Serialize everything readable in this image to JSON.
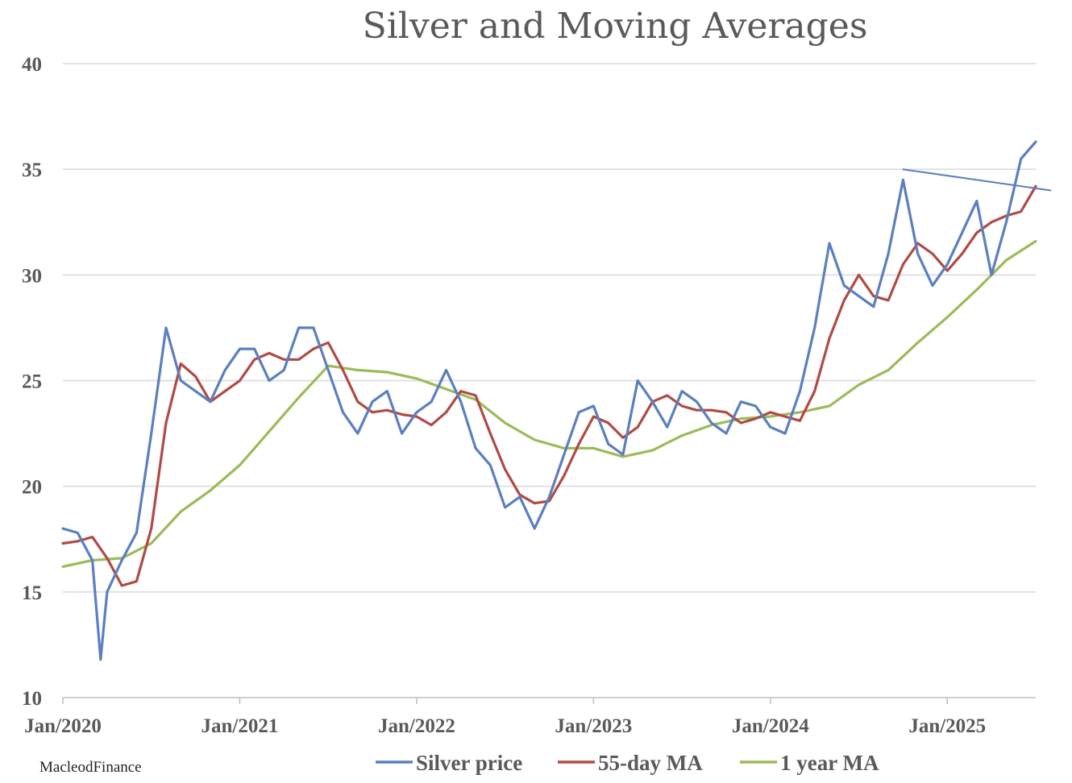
{
  "chart_data": {
    "type": "line",
    "title": "Silver and Moving Averages",
    "xlabel": "",
    "ylabel": "",
    "ylim": [
      10,
      40
    ],
    "xlim": [
      "2020-01",
      "2025-07"
    ],
    "yticks": [
      "10",
      "15",
      "20",
      "25",
      "30",
      "35",
      "40"
    ],
    "xticks": [
      "Jan/2020",
      "Jan/2021",
      "Jan/2022",
      "Jan/2023",
      "Jan/2024",
      "Jan/2025"
    ],
    "grid": "horizontal",
    "legend_position": "bottom",
    "credit": "MacleodFinance",
    "series": [
      {
        "name": "Silver price",
        "color": "#5b7fbf",
        "x": [
          "2020-01",
          "2020-02",
          "2020-03",
          "2020-03-18",
          "2020-04",
          "2020-05",
          "2020-06",
          "2020-07",
          "2020-08",
          "2020-09",
          "2020-10",
          "2020-11",
          "2020-12",
          "2021-01",
          "2021-02",
          "2021-03",
          "2021-04",
          "2021-05",
          "2021-06",
          "2021-07",
          "2021-08",
          "2021-09",
          "2021-10",
          "2021-11",
          "2021-12",
          "2022-01",
          "2022-02",
          "2022-03",
          "2022-04",
          "2022-05",
          "2022-06",
          "2022-07",
          "2022-08",
          "2022-09",
          "2022-10",
          "2022-11",
          "2022-12",
          "2023-01",
          "2023-02",
          "2023-03",
          "2023-04",
          "2023-05",
          "2023-06",
          "2023-07",
          "2023-08",
          "2023-09",
          "2023-10",
          "2023-11",
          "2023-12",
          "2024-01",
          "2024-02",
          "2024-03",
          "2024-04",
          "2024-05",
          "2024-06",
          "2024-07",
          "2024-08",
          "2024-09",
          "2024-10",
          "2024-11",
          "2024-12",
          "2025-01",
          "2025-02",
          "2025-03",
          "2025-04",
          "2025-05",
          "2025-06",
          "2025-07"
        ],
        "values": [
          18.0,
          17.8,
          16.5,
          11.8,
          15.0,
          16.5,
          17.8,
          22.5,
          27.5,
          25.0,
          24.5,
          24.0,
          25.5,
          26.5,
          26.5,
          25.0,
          25.5,
          27.5,
          27.5,
          25.5,
          23.5,
          22.5,
          24.0,
          24.5,
          22.5,
          23.5,
          24.0,
          25.5,
          24.0,
          21.8,
          21.0,
          19.0,
          19.5,
          18.0,
          19.5,
          21.5,
          23.5,
          23.8,
          22.0,
          21.5,
          25.0,
          24.0,
          22.8,
          24.5,
          24.0,
          23.0,
          22.5,
          24.0,
          23.8,
          22.8,
          22.5,
          24.5,
          27.5,
          31.5,
          29.5,
          29.0,
          28.5,
          31.0,
          34.5,
          31.0,
          29.5,
          30.5,
          32.0,
          33.5,
          30.0,
          32.5,
          35.5,
          36.3
        ]
      },
      {
        "name": "55-day MA",
        "color": "#b04a45",
        "x": [
          "2020-01",
          "2020-02",
          "2020-03",
          "2020-04",
          "2020-05",
          "2020-06",
          "2020-07",
          "2020-08",
          "2020-09",
          "2020-10",
          "2020-11",
          "2020-12",
          "2021-01",
          "2021-02",
          "2021-03",
          "2021-04",
          "2021-05",
          "2021-06",
          "2021-07",
          "2021-08",
          "2021-09",
          "2021-10",
          "2021-11",
          "2021-12",
          "2022-01",
          "2022-02",
          "2022-03",
          "2022-04",
          "2022-05",
          "2022-06",
          "2022-07",
          "2022-08",
          "2022-09",
          "2022-10",
          "2022-11",
          "2022-12",
          "2023-01",
          "2023-02",
          "2023-03",
          "2023-04",
          "2023-05",
          "2023-06",
          "2023-07",
          "2023-08",
          "2023-09",
          "2023-10",
          "2023-11",
          "2023-12",
          "2024-01",
          "2024-02",
          "2024-03",
          "2024-04",
          "2024-05",
          "2024-06",
          "2024-07",
          "2024-08",
          "2024-09",
          "2024-10",
          "2024-11",
          "2024-12",
          "2025-01",
          "2025-02",
          "2025-03",
          "2025-04",
          "2025-05",
          "2025-06",
          "2025-07"
        ],
        "values": [
          17.3,
          17.4,
          17.6,
          16.6,
          15.3,
          15.5,
          18.0,
          23.0,
          25.8,
          25.2,
          24.0,
          24.5,
          25.0,
          26.0,
          26.3,
          26.0,
          26.0,
          26.5,
          26.8,
          25.5,
          24.0,
          23.5,
          23.6,
          23.4,
          23.3,
          22.9,
          23.5,
          24.5,
          24.3,
          22.5,
          20.8,
          19.6,
          19.2,
          19.3,
          20.5,
          22.0,
          23.3,
          23.0,
          22.3,
          22.8,
          24.0,
          24.3,
          23.8,
          23.6,
          23.6,
          23.5,
          23.0,
          23.2,
          23.5,
          23.3,
          23.1,
          24.5,
          27.0,
          28.8,
          30.0,
          29.0,
          28.8,
          30.5,
          31.5,
          31.0,
          30.2,
          31.0,
          32.0,
          32.5,
          32.8,
          33.0,
          34.2
        ]
      },
      {
        "name": "1 year MA",
        "color": "#9bbb59",
        "x": [
          "2020-01",
          "2020-03",
          "2020-05",
          "2020-07",
          "2020-09",
          "2020-11",
          "2021-01",
          "2021-03",
          "2021-05",
          "2021-07",
          "2021-09",
          "2021-11",
          "2022-01",
          "2022-03",
          "2022-05",
          "2022-07",
          "2022-09",
          "2022-11",
          "2023-01",
          "2023-03",
          "2023-05",
          "2023-07",
          "2023-09",
          "2023-11",
          "2024-01",
          "2024-03",
          "2024-05",
          "2024-07",
          "2024-09",
          "2024-11",
          "2025-01",
          "2025-03",
          "2025-05",
          "2025-07"
        ],
        "values": [
          16.2,
          16.5,
          16.6,
          17.3,
          18.8,
          19.8,
          21.0,
          22.6,
          24.2,
          25.7,
          25.5,
          25.4,
          25.1,
          24.6,
          24.1,
          23.0,
          22.2,
          21.8,
          21.8,
          21.4,
          21.7,
          22.4,
          22.9,
          23.2,
          23.3,
          23.5,
          23.8,
          24.8,
          25.5,
          26.8,
          28.0,
          29.3,
          30.7,
          31.6
        ]
      },
      {
        "name": "",
        "color": "#5b7fbf",
        "x": [
          "2024-10",
          "2025-08"
        ],
        "values": [
          35.0,
          34.0
        ]
      }
    ]
  }
}
